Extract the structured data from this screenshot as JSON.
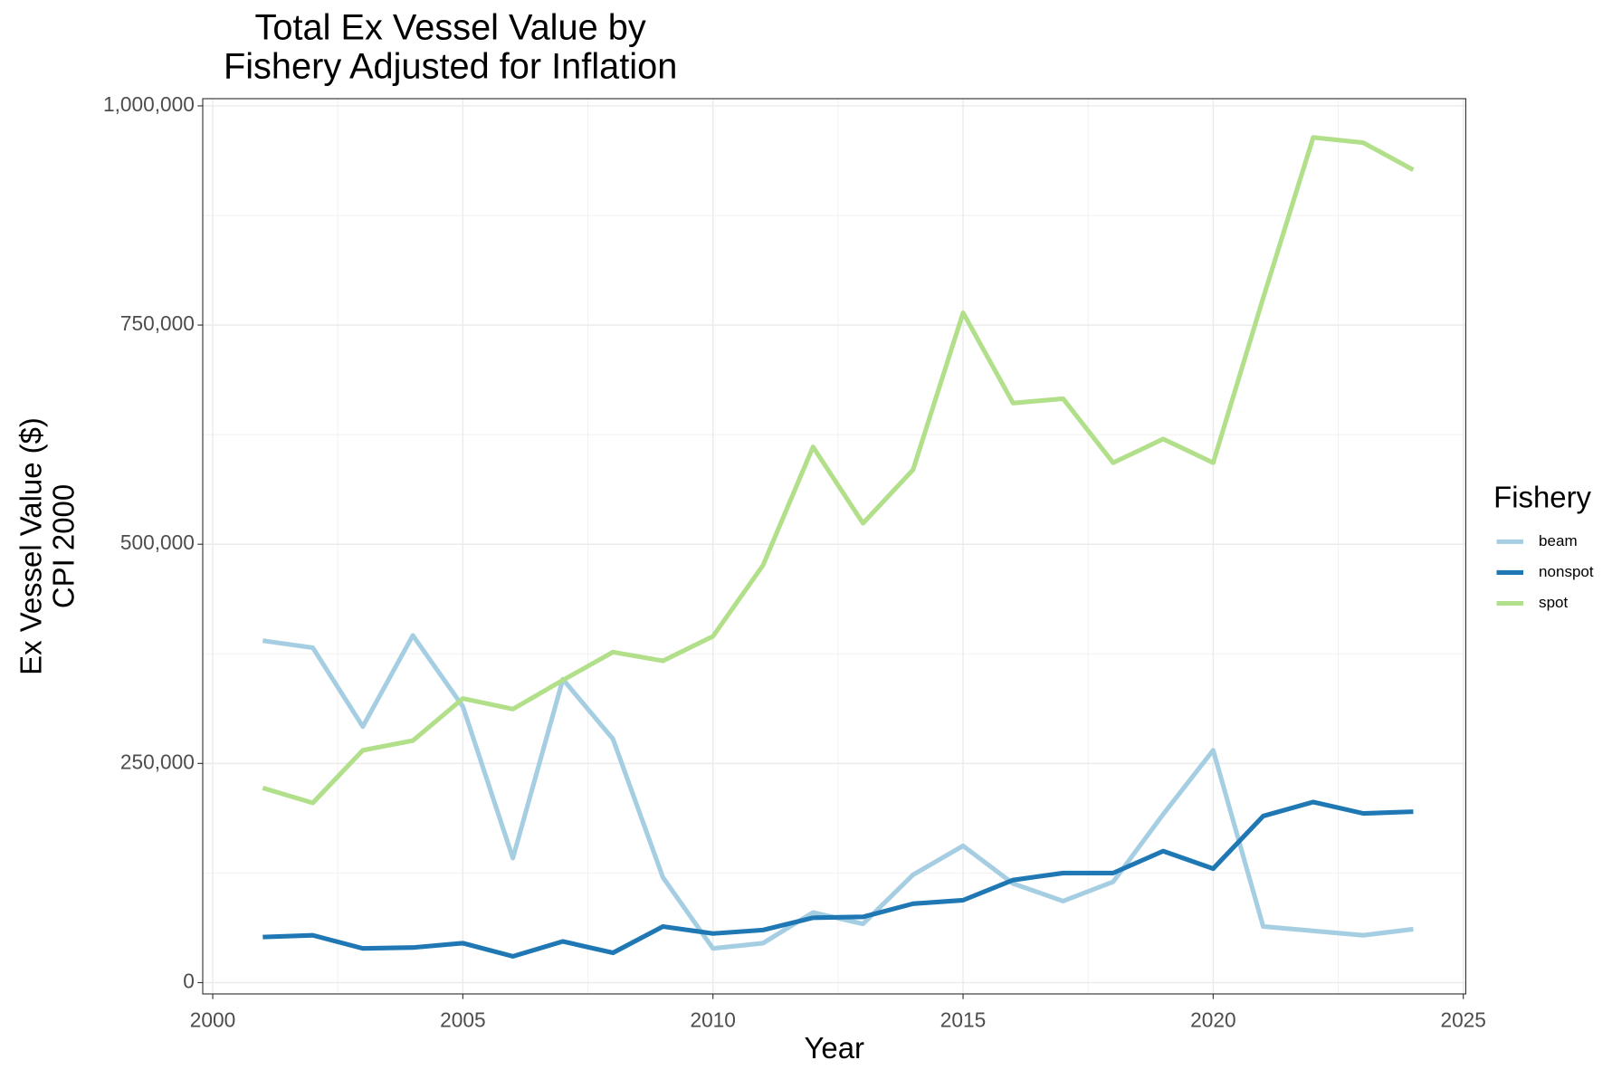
{
  "chart_data": {
    "type": "line",
    "title": [
      "Total Ex Vessel Value by",
      "Fishery Adjusted for Inflation"
    ],
    "x_label": "Year",
    "y_label": [
      "Ex Vessel Value ($)",
      "CPI 2000"
    ],
    "legend_title": "Fishery",
    "legend_position": "right",
    "grid": true,
    "minor_grid": true,
    "x": [
      2001,
      2002,
      2003,
      2004,
      2005,
      2006,
      2007,
      2008,
      2009,
      2010,
      2011,
      2012,
      2013,
      2014,
      2015,
      2016,
      2017,
      2018,
      2019,
      2020,
      2021,
      2022,
      2023,
      2024
    ],
    "series": [
      {
        "name": "beam",
        "color": "#a6cee3",
        "values": [
          390000,
          382000,
          292000,
          396000,
          315000,
          142000,
          346000,
          278000,
          120000,
          39000,
          45000,
          80000,
          67000,
          123000,
          156000,
          113000,
          93000,
          115000,
          192000,
          265000,
          64000,
          59000,
          54000,
          61000
        ]
      },
      {
        "name": "nonspot",
        "color": "#1f78b4",
        "values": [
          52000,
          54000,
          39000,
          40000,
          45000,
          30000,
          47000,
          34000,
          64000,
          56000,
          60000,
          74000,
          75000,
          90000,
          94000,
          117000,
          125000,
          125000,
          150000,
          130000,
          190000,
          206000,
          193000,
          195000
        ]
      },
      {
        "name": "spot",
        "color": "#b2df8a",
        "values": [
          222000,
          205000,
          265000,
          276000,
          324000,
          312000,
          345000,
          377000,
          367000,
          395000,
          476000,
          611000,
          524000,
          585000,
          764000,
          661000,
          666000,
          593000,
          620000,
          593000,
          781000,
          964000,
          958000,
          927000
        ]
      }
    ],
    "xlim": [
      1999.8,
      2025.05
    ],
    "xticks": [
      2000,
      2005,
      2010,
      2015,
      2020,
      2025
    ],
    "ylim": [
      -12900,
      1008200
    ],
    "yticks": [
      0,
      {
        "value": 250000,
        "label": "250,000"
      },
      {
        "value": 500000,
        "label": "500,000"
      },
      {
        "value": 750000,
        "label": "750,000"
      },
      {
        "value": 1000000,
        "label": "1,000,000"
      }
    ]
  }
}
